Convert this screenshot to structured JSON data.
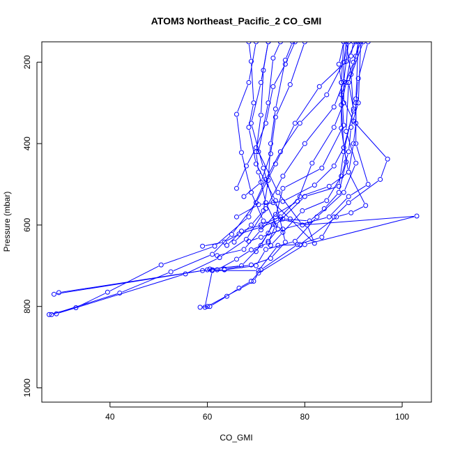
{
  "chart_data": {
    "type": "line",
    "title": "ATOM3 Northeast_Pacific_2 CO_GMI",
    "xlabel": "CO_GMI",
    "ylabel": "Pressure (mbar)",
    "xlim": [
      26,
      106
    ],
    "ylim": [
      1035,
      150
    ],
    "y_reversed": true,
    "xticks": [
      40,
      60,
      80,
      100
    ],
    "yticks": [
      200,
      400,
      600,
      800,
      1000
    ],
    "grid": false,
    "series_color": "#0000ff",
    "marker": "open-circle",
    "series": [
      {
        "values": [
          [
            27.5,
            820
          ],
          [
            33,
            803
          ],
          [
            39.5,
            765
          ],
          [
            50.5,
            698
          ],
          [
            61.5,
            652
          ],
          [
            68.5,
            580
          ],
          [
            72,
            488
          ],
          [
            75,
            420
          ],
          [
            79,
            350
          ],
          [
            84.5,
            280
          ],
          [
            88,
            200
          ],
          [
            89,
            150
          ]
        ]
      },
      {
        "values": [
          [
            28,
            820
          ],
          [
            42,
            767
          ],
          [
            52.5,
            715
          ],
          [
            61,
            672
          ],
          [
            65,
            623
          ],
          [
            70,
            545
          ],
          [
            74,
            450
          ],
          [
            78,
            350
          ],
          [
            83,
            260
          ],
          [
            88.5,
            198
          ],
          [
            90.5,
            150
          ]
        ]
      },
      {
        "values": [
          [
            29,
            818
          ],
          [
            55.5,
            720
          ],
          [
            62.5,
            680
          ],
          [
            68,
            635
          ],
          [
            72,
            560
          ],
          [
            75.5,
            480
          ],
          [
            80,
            400
          ],
          [
            86,
            310
          ],
          [
            88,
            248
          ],
          [
            89,
            150
          ]
        ]
      },
      {
        "values": [
          [
            28.5,
            770
          ],
          [
            59,
            712
          ],
          [
            61,
            710
          ],
          [
            62,
            710
          ],
          [
            66,
            684
          ],
          [
            69,
            661
          ],
          [
            72.5,
            644
          ],
          [
            74,
            600
          ],
          [
            80,
            530
          ],
          [
            87,
            505
          ],
          [
            88,
            420
          ],
          [
            90,
            315
          ],
          [
            89,
            250
          ],
          [
            92,
            150
          ]
        ]
      },
      {
        "values": [
          [
            29.5,
            766
          ],
          [
            60,
            710
          ],
          [
            63.5,
            710
          ],
          [
            70,
            700
          ],
          [
            72,
            660
          ],
          [
            78,
            640
          ],
          [
            82.5,
            580
          ],
          [
            88,
            520
          ],
          [
            90.5,
            448
          ],
          [
            88.5,
            370
          ],
          [
            89,
            250
          ],
          [
            90.5,
            185
          ],
          [
            91,
            150
          ]
        ]
      },
      {
        "values": [
          [
            58.5,
            802
          ],
          [
            60.5,
            800
          ],
          [
            64,
            775
          ],
          [
            66.5,
            755
          ],
          [
            69,
            738
          ],
          [
            71,
            710
          ],
          [
            78.5,
            648
          ],
          [
            83.5,
            630
          ],
          [
            86,
            580
          ],
          [
            89,
            545
          ],
          [
            95.5,
            488
          ],
          [
            97,
            438
          ],
          [
            90,
            345
          ],
          [
            87.5,
            280
          ],
          [
            90,
            200
          ],
          [
            91.5,
            150
          ]
        ]
      },
      {
        "values": [
          [
            59.5,
            802
          ],
          [
            61,
            712
          ],
          [
            70.5,
            712
          ],
          [
            74.5,
            650
          ],
          [
            79,
            648
          ],
          [
            86.5,
            580
          ],
          [
            89.5,
            570
          ],
          [
            92.5,
            552
          ],
          [
            89,
            470
          ],
          [
            88,
            410
          ],
          [
            87.5,
            305
          ],
          [
            88.5,
            250
          ],
          [
            89.5,
            185
          ],
          [
            90,
            150
          ]
        ]
      },
      {
        "values": [
          [
            60,
            800
          ],
          [
            69.5,
            738
          ],
          [
            70.5,
            718
          ],
          [
            80,
            648
          ],
          [
            103,
            578
          ],
          [
            79.5,
            600
          ],
          [
            74.5,
            520
          ],
          [
            70.5,
            420
          ],
          [
            72.5,
            300
          ],
          [
            73.5,
            190
          ],
          [
            75,
            150
          ]
        ]
      },
      {
        "values": [
          [
            59,
            652
          ],
          [
            63.5,
            642
          ],
          [
            66.5,
            622
          ],
          [
            71,
            605
          ],
          [
            75,
            586
          ],
          [
            80.5,
            600
          ],
          [
            82,
            645
          ],
          [
            77,
            585
          ],
          [
            73.5,
            545
          ],
          [
            71.5,
            460
          ],
          [
            69,
            350
          ],
          [
            71,
            250
          ],
          [
            72.5,
            150
          ]
        ]
      },
      {
        "values": [
          [
            62,
            675
          ],
          [
            67.5,
            660
          ],
          [
            71,
            612
          ],
          [
            74,
            574
          ],
          [
            78.5,
            542
          ],
          [
            81.5,
            448
          ],
          [
            86,
            360
          ],
          [
            88,
            300
          ],
          [
            88,
            200
          ],
          [
            88.5,
            150
          ]
        ]
      },
      {
        "values": [
          [
            63.5,
            708
          ],
          [
            69,
            698
          ],
          [
            73,
            682
          ],
          [
            76,
            642
          ],
          [
            74,
            540
          ],
          [
            70,
            450
          ],
          [
            68.5,
            360
          ],
          [
            69.5,
            300
          ],
          [
            69,
            198
          ],
          [
            68.5,
            150
          ]
        ]
      },
      {
        "values": [
          [
            60.5,
            708
          ],
          [
            67,
            700
          ],
          [
            71,
            650
          ],
          [
            73.5,
            598
          ],
          [
            71.5,
            590
          ],
          [
            69,
            520
          ],
          [
            67,
            422
          ],
          [
            66,
            328
          ],
          [
            68.5,
            250
          ],
          [
            70,
            150
          ]
        ]
      },
      {
        "values": [
          [
            66,
            580
          ],
          [
            70.5,
            550
          ],
          [
            75.5,
            542
          ],
          [
            82,
            502
          ],
          [
            86,
            455
          ],
          [
            88,
            410
          ],
          [
            90,
            320
          ],
          [
            89.5,
            230
          ],
          [
            88.5,
            150
          ]
        ]
      },
      {
        "values": [
          [
            70,
            665
          ],
          [
            72.5,
            620
          ],
          [
            74,
            580
          ],
          [
            75.5,
            510
          ],
          [
            83.5,
            460
          ],
          [
            88,
            355
          ],
          [
            87.5,
            250
          ],
          [
            87,
            205
          ],
          [
            88,
            150
          ]
        ]
      },
      {
        "values": [
          [
            68.5,
            640
          ],
          [
            71,
            630
          ],
          [
            75.5,
            610
          ],
          [
            85,
            580
          ],
          [
            89,
            530
          ],
          [
            93,
            500
          ],
          [
            90.5,
            400
          ],
          [
            90.5,
            300
          ],
          [
            91,
            240
          ],
          [
            93,
            150
          ]
        ]
      },
      {
        "values": [
          [
            66,
            510
          ],
          [
            68,
            455
          ],
          [
            70,
            410
          ],
          [
            72,
            350
          ],
          [
            73.5,
            260
          ],
          [
            76,
            205
          ],
          [
            78,
            150
          ]
        ]
      },
      {
        "values": [
          [
            72.5,
            640
          ],
          [
            74.5,
            610
          ],
          [
            72,
            545
          ],
          [
            70.5,
            470
          ],
          [
            70,
            420
          ],
          [
            71,
            330
          ],
          [
            71.5,
            220
          ],
          [
            72.5,
            150
          ]
        ]
      },
      {
        "values": [
          [
            67.5,
            530
          ],
          [
            71,
            495
          ],
          [
            73,
            425
          ],
          [
            74,
            335
          ],
          [
            77,
            255
          ],
          [
            80,
            150
          ]
        ]
      },
      {
        "values": [
          [
            73,
            650
          ],
          [
            75.5,
            618
          ],
          [
            79.5,
            565
          ],
          [
            84.5,
            540
          ],
          [
            87.5,
            480
          ],
          [
            89,
            420
          ],
          [
            89.5,
            360
          ],
          [
            91,
            300
          ],
          [
            91.5,
            150
          ]
        ]
      },
      {
        "values": [
          [
            75.5,
            585
          ],
          [
            81,
            590
          ],
          [
            84,
            560
          ],
          [
            87,
            520
          ],
          [
            88.5,
            445
          ],
          [
            87.5,
            362
          ],
          [
            87.5,
            250
          ],
          [
            88,
            150
          ]
        ]
      },
      {
        "values": [
          [
            64,
            650
          ],
          [
            67,
            615
          ],
          [
            71,
            600
          ],
          [
            75,
            580
          ],
          [
            79,
            530
          ],
          [
            85,
            505
          ],
          [
            89,
            470
          ],
          [
            90,
            400
          ],
          [
            90.5,
            350
          ],
          [
            90.5,
            290
          ],
          [
            91,
            150
          ]
        ]
      },
      {
        "values": [
          [
            65.5,
            642
          ],
          [
            69,
            600
          ],
          [
            71.5,
            565
          ],
          [
            72.5,
            490
          ],
          [
            73,
            400
          ],
          [
            74,
            315
          ],
          [
            76,
            195
          ],
          [
            77.5,
            150
          ]
        ]
      }
    ]
  }
}
